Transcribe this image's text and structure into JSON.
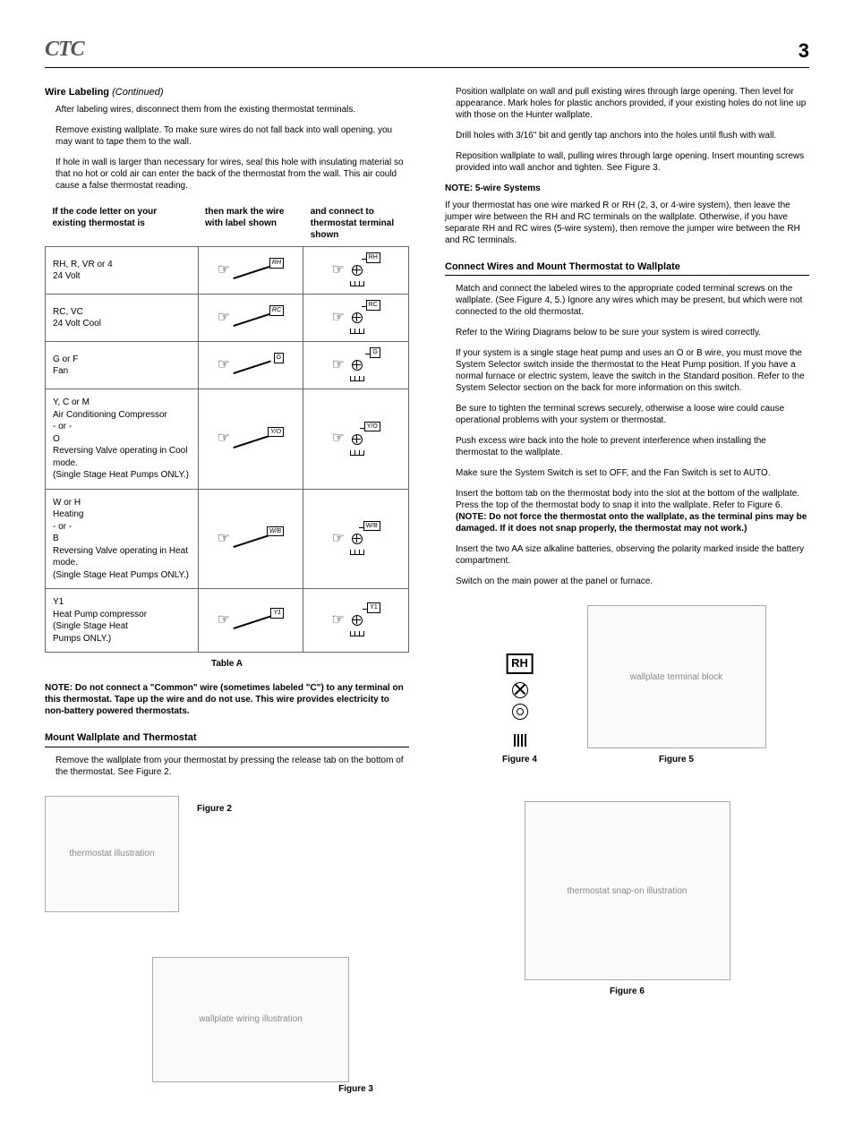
{
  "header": {
    "logo_text": "CTC",
    "page_number": "3"
  },
  "left": {
    "wire_labeling": {
      "title": "Wire Labeling",
      "continued": "(Continued)",
      "p1": "After labeling wires, disconnect them from the existing thermostat terminals.",
      "p2": "Remove existing wallplate. To make sure wires do not fall back into wall opening, you may want to tape them to the wall.",
      "p3": "If hole in wall is larger than necessary for wires, seal this hole with insulating material so that no hot or cold air can enter the back of the thermostat from the wall. This air could cause a false thermostat reading."
    },
    "table": {
      "col1_header": "If the code letter on your existing thermostat is",
      "col2_header": "then mark the wire with label shown",
      "col3_header": "and connect to thermostat terminal shown",
      "rows": [
        {
          "desc_l1": "RH, R, VR or 4",
          "desc_l2": "24 Volt",
          "flag": "RH",
          "term": "RH"
        },
        {
          "desc_l1": "RC, VC",
          "desc_l2": "24 Volt Cool",
          "flag": "RC",
          "term": "RC"
        },
        {
          "desc_l1": "G or F",
          "desc_l2": "Fan",
          "flag": "G",
          "term": "G"
        },
        {
          "desc_l1": "Y, C or M",
          "desc_l2": "Air Conditioning Compressor",
          "desc_l3": "- or -",
          "desc_l4": "O",
          "desc_l5": "Reversing Valve operating in Cool mode.",
          "desc_l6": "(Single Stage Heat Pumps ONLY.)",
          "flag": "Y/O",
          "term": "Y/O"
        },
        {
          "desc_l1": "W or H",
          "desc_l2": "Heating",
          "desc_l3": "- or -",
          "desc_l4": "B",
          "desc_l5": "Reversing Valve operating in Heat mode.",
          "desc_l6": "(Single Stage Heat Pumps ONLY.)",
          "flag": "W/B",
          "term": "W/B"
        },
        {
          "desc_l1": "Y1",
          "desc_l2": "Heat Pump compressor",
          "desc_l3": "(Single Stage Heat",
          "desc_l4": "Pumps ONLY.)",
          "flag": "Y1",
          "term": "Y1"
        }
      ],
      "caption": "Table A"
    },
    "note_common": "NOTE: Do not connect a \"Common\" wire (sometimes labeled \"C\") to any terminal on this thermostat. Tape up the wire and do not use. This wire provides electricity to non-battery powered thermostats.",
    "mount": {
      "heading": "Mount Wallplate and Thermostat",
      "p1": "Remove the wallplate from your thermostat by pressing the release tab on the bottom of the thermostat.  See Figure 2."
    },
    "fig2_label": "Figure 2",
    "fig3_label": "Figure 3"
  },
  "right": {
    "p1": "Position wallplate on wall and pull existing wires through large opening. Then level for appearance. Mark holes for plastic anchors provided, if your existing holes do not line up with those on the Hunter wallplate.",
    "p2": "Drill holes with 3/16\" bit and gently tap anchors into the holes until flush with wall.",
    "p3": "Reposition wallplate to wall, pulling wires through large opening. Insert mounting screws provided into wall anchor and tighten. See Figure 3.",
    "note5wire_heading": "NOTE: 5-wire Systems",
    "note5wire_body": "If your thermostat has one wire marked R or RH (2, 3, or 4-wire system), then leave the jumper wire between the RH and RC terminals on the wallplate. Otherwise, if you have separate RH and RC wires (5-wire system), then remove the jumper wire between the RH and RC terminals.",
    "connect": {
      "heading": "Connect Wires and Mount Thermostat to Wallplate",
      "p1": "Match and connect the labeled wires to the appropriate coded terminal screws on the wallplate. (See Figure 4, 5.) Ignore any wires which may be present, but which were not connected to the old thermostat.",
      "p2": "Refer to the Wiring Diagrams below to be sure your system is wired correctly.",
      "p3": "If your system is a single stage heat pump and uses an O or B wire, you must move the System Selector switch inside the thermostat to the Heat Pump position. If you have a normal furnace or electric system, leave the switch in the Standard position. Refer to the System Selector section on the back for more information on this switch.",
      "p4": "Be sure to tighten the terminal screws securely, otherwise a loose wire could cause operational problems with your system or thermostat.",
      "p5": "Push excess wire back into the hole to prevent interference when installing the thermostat to the wallplate.",
      "p6": "Make sure the System Switch is set to OFF, and the Fan Switch is set to AUTO.",
      "p7a": "Insert the bottom tab on the thermostat body into the slot at the bottom of the wallplate. Press the top of the thermostat body to snap it into the wallplate. Refer to Figure 6. ",
      "p7b": "(NOTE: Do not force the thermostat onto the wallplate, as the terminal pins may be damaged. If it does not snap properly, the thermostat may not work.)",
      "p8": "Insert the two AA size alkaline batteries, observing the polarity marked inside the battery compartment.",
      "p9": "Switch on the main power at the panel or furnace."
    },
    "fig4_label": "Figure 4",
    "fig4_tag": "RH",
    "fig5_label": "Figure 5",
    "fig6_label": "Figure 6"
  }
}
